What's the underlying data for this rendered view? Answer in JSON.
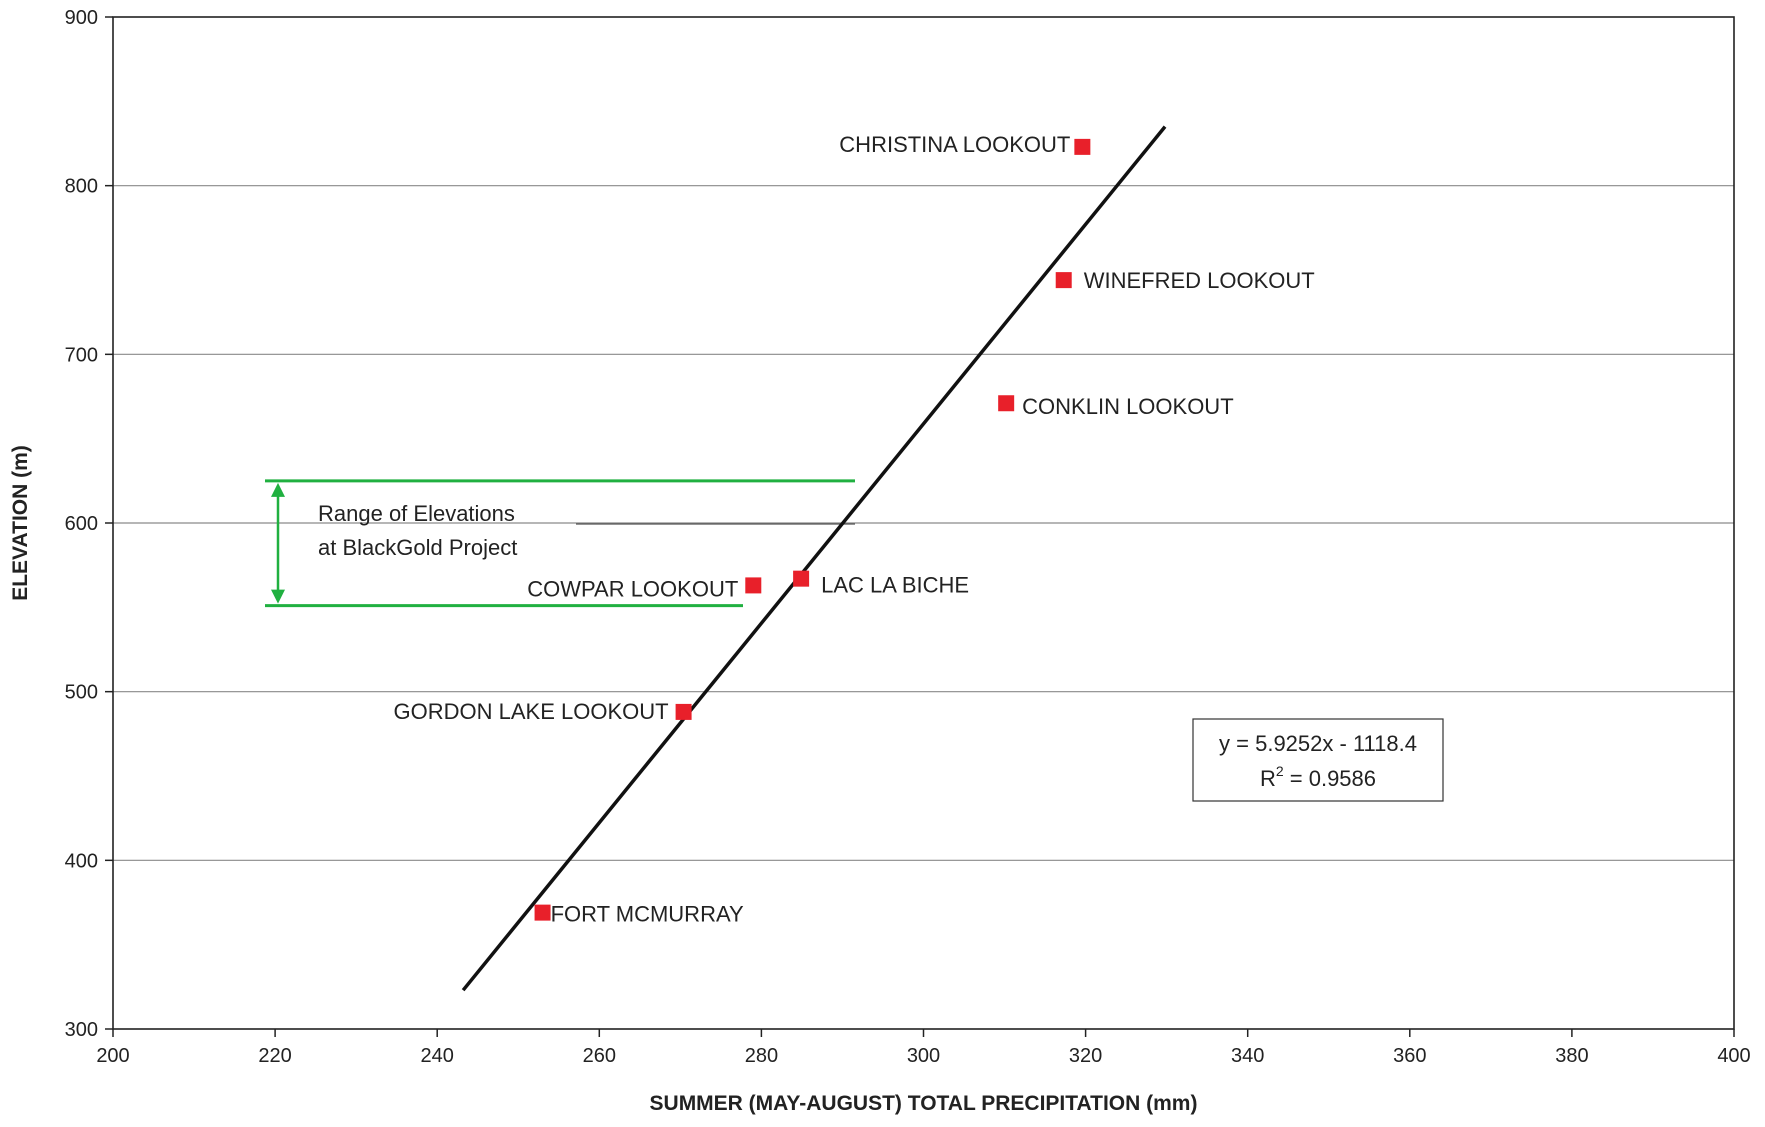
{
  "chart_data": {
    "type": "scatter",
    "xlabel": "SUMMER (MAY-AUGUST) TOTAL PRECIPITATION (mm)",
    "ylabel": "ELEVATION (m)",
    "xlim": [
      200,
      400
    ],
    "ylim": [
      300,
      900
    ],
    "x_ticks": [
      "200",
      "220",
      "240",
      "260",
      "280",
      "300",
      "320",
      "340",
      "360",
      "380",
      "400"
    ],
    "y_ticks": [
      "300",
      "400",
      "500",
      "600",
      "700",
      "800",
      "900"
    ],
    "grid": "horizontal",
    "marker_color": "#e8202a",
    "points": [
      {
        "label": "CHRISTINA LOOKOUT",
        "x": 319.6,
        "y": 823
      },
      {
        "label": "WINEFRED LOOKOUT",
        "x": 317.3,
        "y": 744
      },
      {
        "label": "CONKLIN LOOKOUT",
        "x": 310.2,
        "y": 671
      },
      {
        "label": "LAC LA BICHE",
        "x": 284.9,
        "y": 567
      },
      {
        "label": "COWPAR LOOKOUT",
        "x": 279.0,
        "y": 563
      },
      {
        "label": "GORDON LAKE LOOKOUT",
        "x": 270.4,
        "y": 488
      },
      {
        "label": "FORT MCMURRAY",
        "x": 253.0,
        "y": 369
      }
    ],
    "trendline": {
      "x_start": 243.2,
      "y_start": 323,
      "x_end": 329.8,
      "y_end": 835,
      "color": "#111111"
    },
    "equation": {
      "line1": "y = 5.9252x - 1118.4",
      "r2_prefix": "R",
      "r2_sup": "2",
      "r2_suffix": " = 0.9586"
    },
    "elevation_range": {
      "upper": 625,
      "lower": 551,
      "color": "#20b040",
      "line1": "Range of Elevations",
      "line2": "at BlackGold Project"
    }
  }
}
